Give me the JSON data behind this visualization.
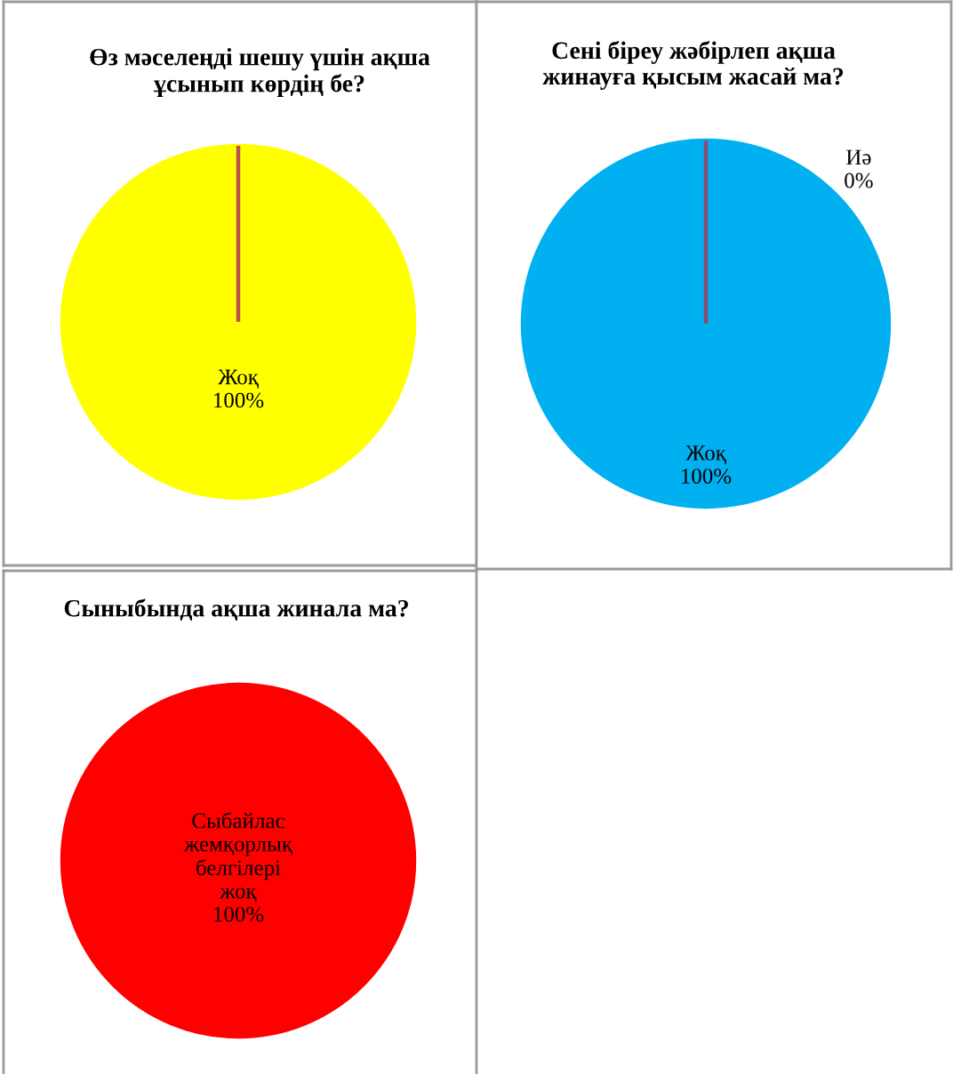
{
  "chart_data": [
    {
      "type": "pie",
      "title": "Өз мәселеңді шешу үшін ақша ұсынып көрдің бе?",
      "categories": [
        null,
        "Жоқ"
      ],
      "values": [
        0,
        100
      ],
      "colors": [
        "#c0504d",
        "#ffff00"
      ],
      "value_labels": [
        null,
        "100%"
      ]
    },
    {
      "type": "pie",
      "title": "Сені біреу жәбірлеп ақша жинауға қысым жасай ма?",
      "categories": [
        "Иә",
        "Жоқ"
      ],
      "values": [
        0,
        100
      ],
      "colors": [
        "#8e4a73",
        "#00b0f0"
      ],
      "value_labels": [
        "0%",
        "100%"
      ]
    },
    {
      "type": "pie",
      "title": "Сыныбында ақша жинала ма?",
      "categories": [
        "Сыбайлас жемқорлық белгілері жоқ"
      ],
      "values": [
        100
      ],
      "colors": [
        "#ff0000"
      ],
      "value_labels": [
        "100%"
      ]
    }
  ]
}
